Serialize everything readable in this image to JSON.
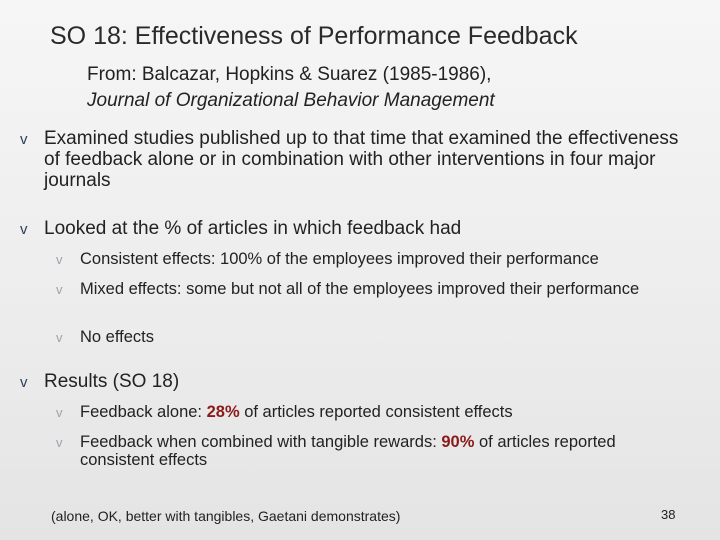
{
  "slide": {
    "title": "SO 18: Effectiveness of  Performance Feedback",
    "source_line1": "From: Balcazar, Hopkins & Suarez (1985-1986),",
    "source_journal": "Journal of Organizational Behavior Management",
    "bullet_marker": "v",
    "bullets": [
      {
        "text": "Examined studies published up to that time that examined the effectiveness of feedback alone or in combination with other interventions in four major journals"
      },
      {
        "text": "Looked at the % of articles in which feedback had",
        "subs": [
          "Consistent effects: 100% of the employees improved their performance",
          "Mixed effects: some but not all of the employees improved their performance",
          "No effects"
        ]
      },
      {
        "text": "Results  (SO 18)",
        "subs": [
          {
            "before": "Feedback alone: ",
            "highlight": "28%",
            "after": " of articles reported consistent effects"
          },
          {
            "before": "Feedback when combined with tangible rewards: ",
            "highlight": "90%",
            "after": " of articles reported consistent effects"
          }
        ]
      }
    ],
    "footer_note": "(alone, OK, better with tangibles, Gaetani demonstrates)",
    "page_number": "38",
    "colors": {
      "highlight": "#8b1a1a",
      "main_marker": "#2b3f55",
      "sub_marker": "#9aa3ad"
    }
  }
}
